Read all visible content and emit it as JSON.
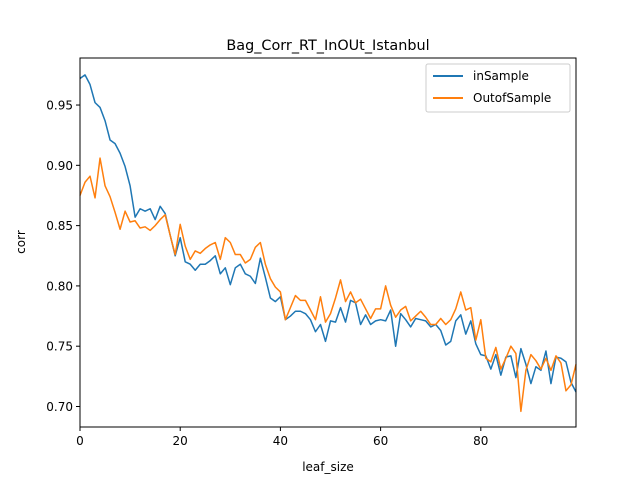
{
  "chart_data": {
    "type": "line",
    "title": "Bag_Corr_RT_InOUt_Istanbul",
    "xlabel": "leaf_size",
    "ylabel": "corr",
    "xlim": [
      0,
      99
    ],
    "ylim": [
      0.683,
      0.989
    ],
    "xticks": [
      0,
      20,
      40,
      60,
      80
    ],
    "xtick_labels": [
      "0",
      "20",
      "40",
      "60",
      "80"
    ],
    "yticks": [
      0.7,
      0.75,
      0.8,
      0.85,
      0.9,
      0.95
    ],
    "ytick_labels": [
      "0.70",
      "0.75",
      "0.80",
      "0.85",
      "0.90",
      "0.95"
    ],
    "grid": false,
    "legend": "upper right",
    "x": [
      0,
      1,
      2,
      3,
      4,
      5,
      6,
      7,
      8,
      9,
      10,
      11,
      12,
      13,
      14,
      15,
      16,
      17,
      18,
      19,
      20,
      21,
      22,
      23,
      24,
      25,
      26,
      27,
      28,
      29,
      30,
      31,
      32,
      33,
      34,
      35,
      36,
      37,
      38,
      39,
      40,
      41,
      42,
      43,
      44,
      45,
      46,
      47,
      48,
      49,
      50,
      51,
      52,
      53,
      54,
      55,
      56,
      57,
      58,
      59,
      60,
      61,
      62,
      63,
      64,
      65,
      66,
      67,
      68,
      69,
      70,
      71,
      72,
      73,
      74,
      75,
      76,
      77,
      78,
      79,
      80,
      81,
      82,
      83,
      84,
      85,
      86,
      87,
      88,
      89,
      90,
      91,
      92,
      93,
      94,
      95,
      96,
      97,
      98,
      99
    ],
    "series": [
      {
        "name": "inSample",
        "color": "#1f77b4",
        "values": [
          0.972,
          0.975,
          0.967,
          0.952,
          0.948,
          0.937,
          0.921,
          0.918,
          0.91,
          0.899,
          0.883,
          0.857,
          0.864,
          0.862,
          0.864,
          0.855,
          0.866,
          0.86,
          0.842,
          0.825,
          0.84,
          0.82,
          0.818,
          0.813,
          0.818,
          0.818,
          0.821,
          0.825,
          0.81,
          0.815,
          0.801,
          0.815,
          0.818,
          0.81,
          0.808,
          0.802,
          0.823,
          0.807,
          0.79,
          0.787,
          0.791,
          0.772,
          0.775,
          0.779,
          0.779,
          0.777,
          0.772,
          0.762,
          0.768,
          0.754,
          0.771,
          0.77,
          0.782,
          0.77,
          0.788,
          0.786,
          0.768,
          0.776,
          0.768,
          0.771,
          0.772,
          0.771,
          0.78,
          0.75,
          0.777,
          0.772,
          0.766,
          0.773,
          0.772,
          0.771,
          0.766,
          0.768,
          0.763,
          0.751,
          0.754,
          0.771,
          0.776,
          0.76,
          0.771,
          0.752,
          0.743,
          0.742,
          0.731,
          0.743,
          0.726,
          0.741,
          0.742,
          0.724,
          0.748,
          0.735,
          0.719,
          0.733,
          0.73,
          0.746,
          0.719,
          0.741,
          0.74,
          0.737,
          0.72,
          0.712
        ]
      },
      {
        "name": "OutofSample",
        "color": "#ff7f0e",
        "values": [
          0.875,
          0.886,
          0.891,
          0.873,
          0.906,
          0.883,
          0.874,
          0.861,
          0.847,
          0.862,
          0.853,
          0.854,
          0.848,
          0.849,
          0.846,
          0.85,
          0.855,
          0.859,
          0.842,
          0.826,
          0.851,
          0.833,
          0.822,
          0.829,
          0.827,
          0.831,
          0.834,
          0.836,
          0.822,
          0.84,
          0.836,
          0.826,
          0.826,
          0.819,
          0.822,
          0.832,
          0.836,
          0.818,
          0.806,
          0.799,
          0.795,
          0.772,
          0.782,
          0.792,
          0.788,
          0.788,
          0.78,
          0.772,
          0.791,
          0.77,
          0.777,
          0.79,
          0.805,
          0.787,
          0.795,
          0.786,
          0.789,
          0.781,
          0.773,
          0.781,
          0.781,
          0.8,
          0.784,
          0.774,
          0.78,
          0.783,
          0.771,
          0.775,
          0.779,
          0.774,
          0.768,
          0.768,
          0.773,
          0.768,
          0.772,
          0.781,
          0.795,
          0.78,
          0.782,
          0.755,
          0.772,
          0.74,
          0.737,
          0.749,
          0.731,
          0.74,
          0.75,
          0.744,
          0.696,
          0.73,
          0.743,
          0.738,
          0.731,
          0.74,
          0.73,
          0.742,
          0.736,
          0.713,
          0.718,
          0.735
        ]
      }
    ]
  }
}
